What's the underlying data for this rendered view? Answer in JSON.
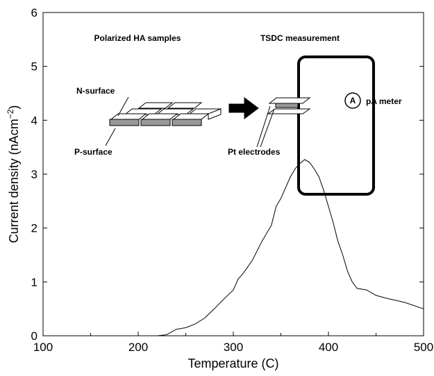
{
  "chart_data": {
    "type": "line",
    "xlabel": "Temperature (C)",
    "ylabel": {
      "main": "Current density (nAcm",
      "sup": "−2",
      "end": ")"
    },
    "xlim": [
      100,
      500
    ],
    "xticks": [
      100,
      200,
      300,
      400,
      500
    ],
    "xminor": [
      150,
      250,
      350,
      450
    ],
    "ylim": [
      0,
      6
    ],
    "yticks": [
      0,
      1,
      2,
      3,
      4,
      5,
      6
    ],
    "series": [
      {
        "color": "#000000",
        "x": [
          180,
          220,
          230,
          240,
          250,
          260,
          270,
          280,
          290,
          300,
          305,
          310,
          320,
          330,
          340,
          345,
          350,
          355,
          360,
          365,
          370,
          375,
          380,
          385,
          390,
          395,
          400,
          405,
          410,
          415,
          420,
          425,
          430,
          440,
          450,
          460,
          480,
          500
        ],
        "values": [
          0,
          0,
          0.02,
          0.12,
          0.15,
          0.22,
          0.33,
          0.5,
          0.68,
          0.85,
          1.05,
          1.15,
          1.4,
          1.75,
          2.05,
          2.4,
          2.55,
          2.75,
          2.95,
          3.1,
          3.2,
          3.27,
          3.22,
          3.1,
          2.95,
          2.7,
          2.4,
          2.1,
          1.75,
          1.5,
          1.2,
          1.0,
          0.88,
          0.85,
          0.75,
          0.7,
          0.62,
          0.5
        ]
      }
    ],
    "annotations": {
      "samples": "Polarized HA samples",
      "tsdc": "TSDC measurement",
      "n_surface": "N-surface",
      "p_surface": "P-surface",
      "electrodes": "Pt electrodes",
      "ammeter": "A",
      "meter": "pA meter"
    }
  }
}
